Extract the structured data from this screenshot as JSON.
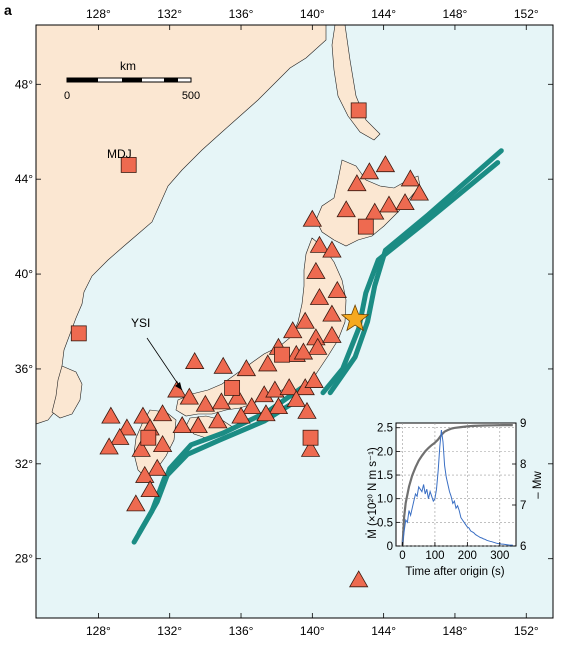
{
  "panel_label": "a",
  "colors": {
    "sea": "#e6f5f7",
    "land": "#fbe7d2",
    "marker": "#ee6a50",
    "trench": "#1b8c84",
    "star": "#f6a91f",
    "mw_curve": "#707070",
    "moment_rate_curve": "#3a6fc4"
  },
  "map": {
    "lon_ticks": [
      "128°",
      "132°",
      "136°",
      "140°",
      "144°",
      "148°",
      "152°"
    ],
    "lat_ticks": [
      "48°",
      "44°",
      "40°",
      "36°",
      "32°",
      "28°"
    ],
    "lon_range": [
      124.5,
      153.5
    ],
    "lat_range": [
      25.5,
      50.5
    ],
    "scale_bar": {
      "unit": "km",
      "min_label": "0",
      "max_label": "500"
    },
    "station_labels": {
      "mdj": "MDJ",
      "ysi": "YSI"
    },
    "epicentre": {
      "lon": 142.4,
      "lat": 38.1
    },
    "square_stations": [
      {
        "lon": 142.6,
        "lat": 46.9
      },
      {
        "lon": 129.7,
        "lat": 44.6
      },
      {
        "lon": 143.0,
        "lat": 42.0
      },
      {
        "lon": 126.9,
        "lat": 37.5
      },
      {
        "lon": 138.3,
        "lat": 36.6
      },
      {
        "lon": 135.5,
        "lat": 35.2
      },
      {
        "lon": 130.8,
        "lat": 33.1
      },
      {
        "lon": 139.9,
        "lat": 33.1
      }
    ],
    "triangle_stations": [
      [
        144.1,
        44.6
      ],
      [
        145.5,
        44.0
      ],
      [
        143.2,
        44.3
      ],
      [
        142.5,
        43.8
      ],
      [
        141.9,
        42.7
      ],
      [
        144.3,
        42.9
      ],
      [
        145.2,
        43.0
      ],
      [
        146.0,
        43.4
      ],
      [
        143.5,
        42.6
      ],
      [
        140.0,
        42.3
      ],
      [
        140.4,
        41.2
      ],
      [
        141.1,
        41.0
      ],
      [
        140.2,
        40.1
      ],
      [
        141.4,
        39.3
      ],
      [
        140.4,
        39.0
      ],
      [
        141.1,
        38.3
      ],
      [
        139.6,
        38.0
      ],
      [
        138.9,
        37.6
      ],
      [
        140.2,
        37.3
      ],
      [
        141.1,
        37.4
      ],
      [
        139.1,
        36.6
      ],
      [
        140.3,
        36.9
      ],
      [
        139.5,
        36.7
      ],
      [
        138.1,
        36.9
      ],
      [
        137.5,
        36.2
      ],
      [
        136.3,
        36.0
      ],
      [
        135.0,
        36.1
      ],
      [
        133.4,
        36.3
      ],
      [
        132.4,
        35.1
      ],
      [
        133.1,
        34.8
      ],
      [
        134.0,
        34.5
      ],
      [
        134.9,
        34.6
      ],
      [
        135.8,
        34.8
      ],
      [
        136.6,
        34.4
      ],
      [
        137.3,
        34.9
      ],
      [
        137.9,
        35.1
      ],
      [
        138.7,
        35.2
      ],
      [
        139.6,
        35.2
      ],
      [
        140.1,
        35.5
      ],
      [
        139.1,
        34.7
      ],
      [
        138.1,
        34.4
      ],
      [
        139.7,
        34.2
      ],
      [
        137.4,
        34.1
      ],
      [
        136.0,
        34.0
      ],
      [
        134.7,
        33.8
      ],
      [
        133.6,
        33.6
      ],
      [
        132.7,
        33.6
      ],
      [
        131.6,
        34.1
      ],
      [
        130.5,
        34.0
      ],
      [
        129.6,
        33.5
      ],
      [
        130.9,
        33.5
      ],
      [
        131.6,
        32.8
      ],
      [
        130.4,
        32.6
      ],
      [
        129.2,
        33.1
      ],
      [
        128.7,
        34.0
      ],
      [
        128.6,
        32.7
      ],
      [
        131.3,
        31.8
      ],
      [
        130.6,
        31.5
      ],
      [
        130.9,
        30.9
      ],
      [
        130.1,
        30.3
      ],
      [
        139.9,
        32.6
      ],
      [
        142.6,
        27.1
      ]
    ],
    "trench_lines": [
      [
        [
          150.6,
          45.2
        ],
        [
          146.5,
          42.5
        ],
        [
          144.1,
          41.0
        ],
        [
          143.5,
          39.5
        ],
        [
          143.1,
          38.0
        ],
        [
          142.4,
          36.5
        ],
        [
          141.0,
          35.0
        ]
      ],
      [
        [
          150.4,
          44.7
        ],
        [
          146.2,
          42.1
        ],
        [
          143.7,
          40.6
        ],
        [
          143.0,
          39.2
        ],
        [
          142.6,
          37.7
        ],
        [
          141.7,
          36.0
        ],
        [
          140.6,
          35.0
        ]
      ],
      [
        [
          139.4,
          35.2
        ],
        [
          137.5,
          34.2
        ],
        [
          135.0,
          33.3
        ],
        [
          133.2,
          32.8
        ],
        [
          132.0,
          31.8
        ],
        [
          131.3,
          30.4
        ],
        [
          130.3,
          29.1
        ]
      ],
      [
        [
          139.2,
          34.7
        ],
        [
          137.3,
          33.8
        ],
        [
          134.8,
          33.0
        ],
        [
          133.0,
          32.4
        ],
        [
          131.7,
          31.4
        ],
        [
          131.0,
          30.0
        ],
        [
          130.0,
          28.7
        ]
      ]
    ]
  },
  "inset": {
    "y_left_label": "Ṁ (×10²⁰ N m s⁻¹)",
    "y_right_label": "– Mw",
    "x_label": "Time after origin (s)"
  },
  "chart_data": {
    "type": "line",
    "xlabel": "Time after origin (s)",
    "ylabel": "Ṁ (×10²⁰ N m s⁻¹)",
    "y2label": "– Mw",
    "xlim": [
      -20,
      350
    ],
    "ylim": [
      0,
      2.6
    ],
    "y2lim": [
      6,
      9
    ],
    "x_ticks": [
      "0",
      "100",
      "200",
      "300"
    ],
    "y_ticks": [
      "0",
      "0.5",
      "1.0",
      "1.5",
      "2.0",
      "2.5"
    ],
    "y2_ticks": [
      "6",
      "7",
      "8",
      "9"
    ],
    "grid": true,
    "series": [
      {
        "axis": "left",
        "x": [
          0,
          5,
          10,
          15,
          20,
          25,
          30,
          35,
          40,
          45,
          50,
          55,
          60,
          65,
          70,
          75,
          80,
          85,
          90,
          95,
          100,
          105,
          110,
          115,
          120,
          125,
          130,
          135,
          140,
          145,
          150,
          155,
          160,
          165,
          170,
          175,
          180,
          185,
          190,
          195,
          200,
          205,
          210,
          215,
          220,
          225,
          230,
          235,
          240,
          245,
          250,
          255,
          260,
          265,
          270,
          275,
          280,
          285,
          290,
          295,
          300,
          305,
          310,
          320,
          330,
          340
        ],
        "values": [
          0.05,
          0.3,
          0.55,
          0.5,
          0.75,
          0.65,
          0.8,
          0.95,
          1.1,
          1.05,
          1.25,
          1.2,
          1.15,
          1.3,
          1.1,
          1.2,
          1.0,
          1.15,
          1.05,
          0.95,
          1.0,
          1.2,
          1.6,
          2.1,
          2.45,
          2.2,
          1.7,
          1.45,
          1.3,
          1.15,
          1.05,
          0.9,
          0.95,
          0.8,
          0.85,
          0.75,
          0.6,
          0.55,
          0.5,
          0.45,
          0.4,
          0.38,
          0.32,
          0.3,
          0.28,
          0.24,
          0.22,
          0.2,
          0.18,
          0.17,
          0.15,
          0.14,
          0.12,
          0.11,
          0.1,
          0.09,
          0.08,
          0.07,
          0.06,
          0.05,
          0.05,
          0.04,
          0.04,
          0.03,
          0.02,
          0.02
        ]
      },
      {
        "axis": "right",
        "x": [
          0,
          5,
          10,
          20,
          30,
          40,
          50,
          60,
          70,
          80,
          90,
          100,
          110,
          120,
          130,
          140,
          150,
          160,
          180,
          200,
          220,
          250,
          280,
          310,
          340
        ],
        "values": [
          6.0,
          6.7,
          7.05,
          7.45,
          7.72,
          7.92,
          8.08,
          8.2,
          8.31,
          8.39,
          8.46,
          8.52,
          8.6,
          8.71,
          8.79,
          8.83,
          8.86,
          8.88,
          8.9,
          8.92,
          8.93,
          8.94,
          8.945,
          8.95,
          8.95
        ]
      }
    ]
  }
}
